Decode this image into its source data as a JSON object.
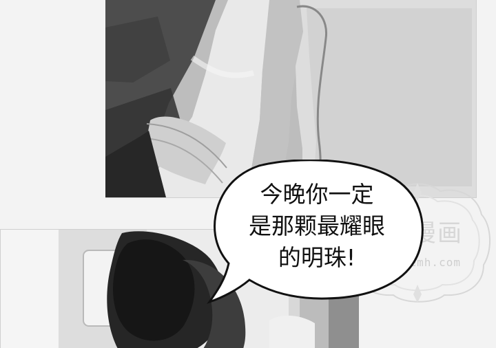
{
  "speech_bubble": {
    "lines": [
      "今晚你一定",
      "是那颗最耀眼",
      "的明珠!"
    ]
  },
  "watermark": {
    "title": "嘀嗒漫画",
    "url": "dixuemh.com"
  },
  "images": {
    "top_panel": "arm-with-bracelet-holding-blanket",
    "bottom_panel": "blurred-dark-hair-figure"
  },
  "colors": {
    "page_background": "#f3f3f3",
    "bubble_fill": "#ffffff",
    "bubble_stroke": "#111111",
    "watermark": "#d3d3d3"
  }
}
